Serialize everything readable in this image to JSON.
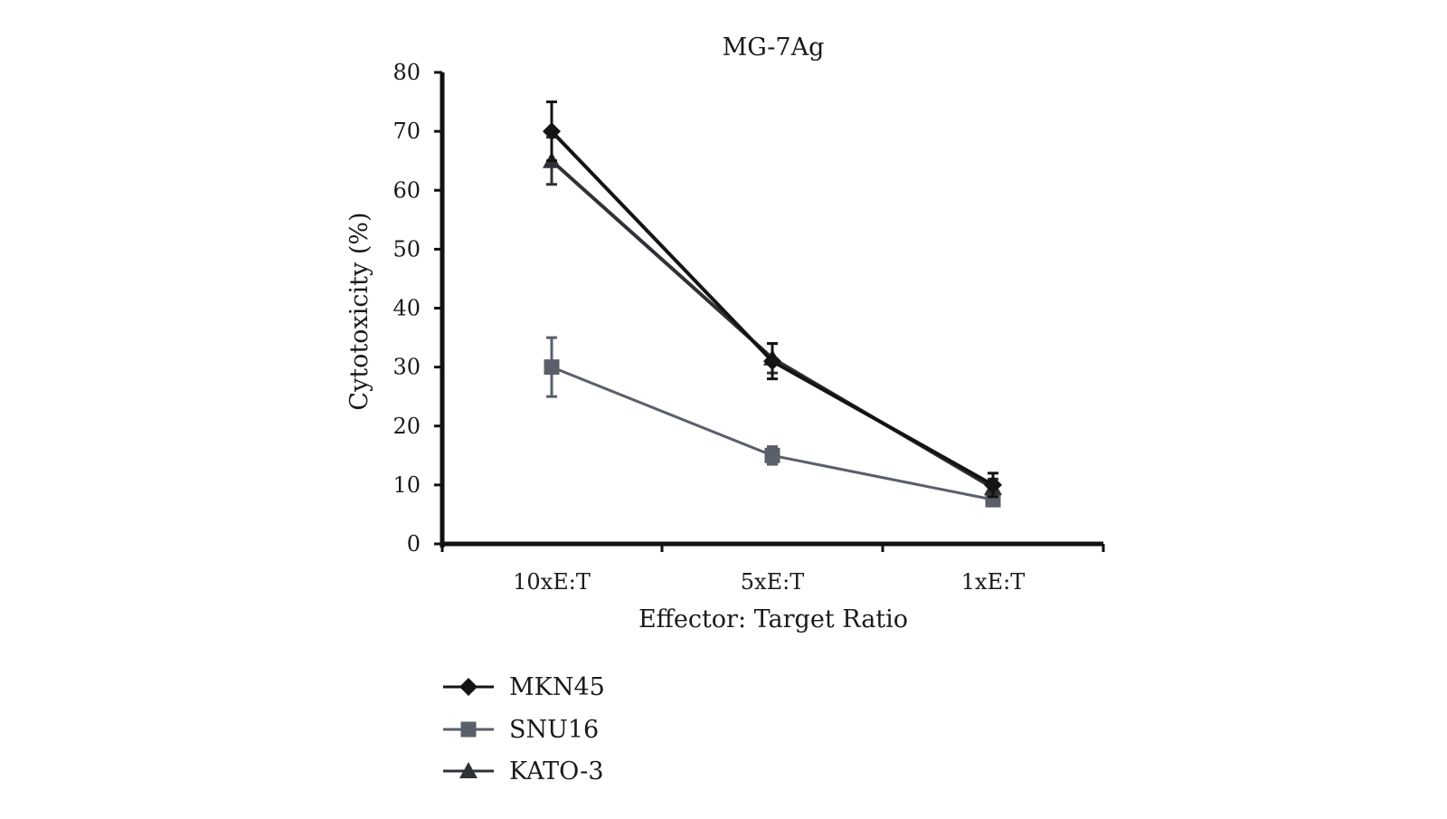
{
  "chart_data": {
    "type": "line",
    "title": "MG-7Ag",
    "xlabel": "Effector: Target Ratio",
    "ylabel": "Cytotoxicity (%)",
    "categories": [
      "10xE:T",
      "5xE:T",
      "1xE:T"
    ],
    "ylim": [
      0,
      80
    ],
    "yticks": [
      0,
      10,
      20,
      30,
      40,
      50,
      60,
      70,
      80
    ],
    "grid": false,
    "legend_position": "bottom-left",
    "series": [
      {
        "name": "MKN45",
        "marker": "diamond",
        "color": "#141414",
        "values": [
          70,
          31,
          10
        ],
        "errors": [
          5,
          3,
          2
        ]
      },
      {
        "name": "SNU16",
        "marker": "square",
        "color": "#5a5f6a",
        "values": [
          30,
          15,
          7.5
        ],
        "errors": [
          5,
          1.5,
          1
        ]
      },
      {
        "name": "KATO-3",
        "marker": "triangle",
        "color": "#2f3236",
        "values": [
          65,
          31.5,
          9.5
        ],
        "errors": [
          4,
          2.5,
          1.5
        ]
      }
    ]
  }
}
